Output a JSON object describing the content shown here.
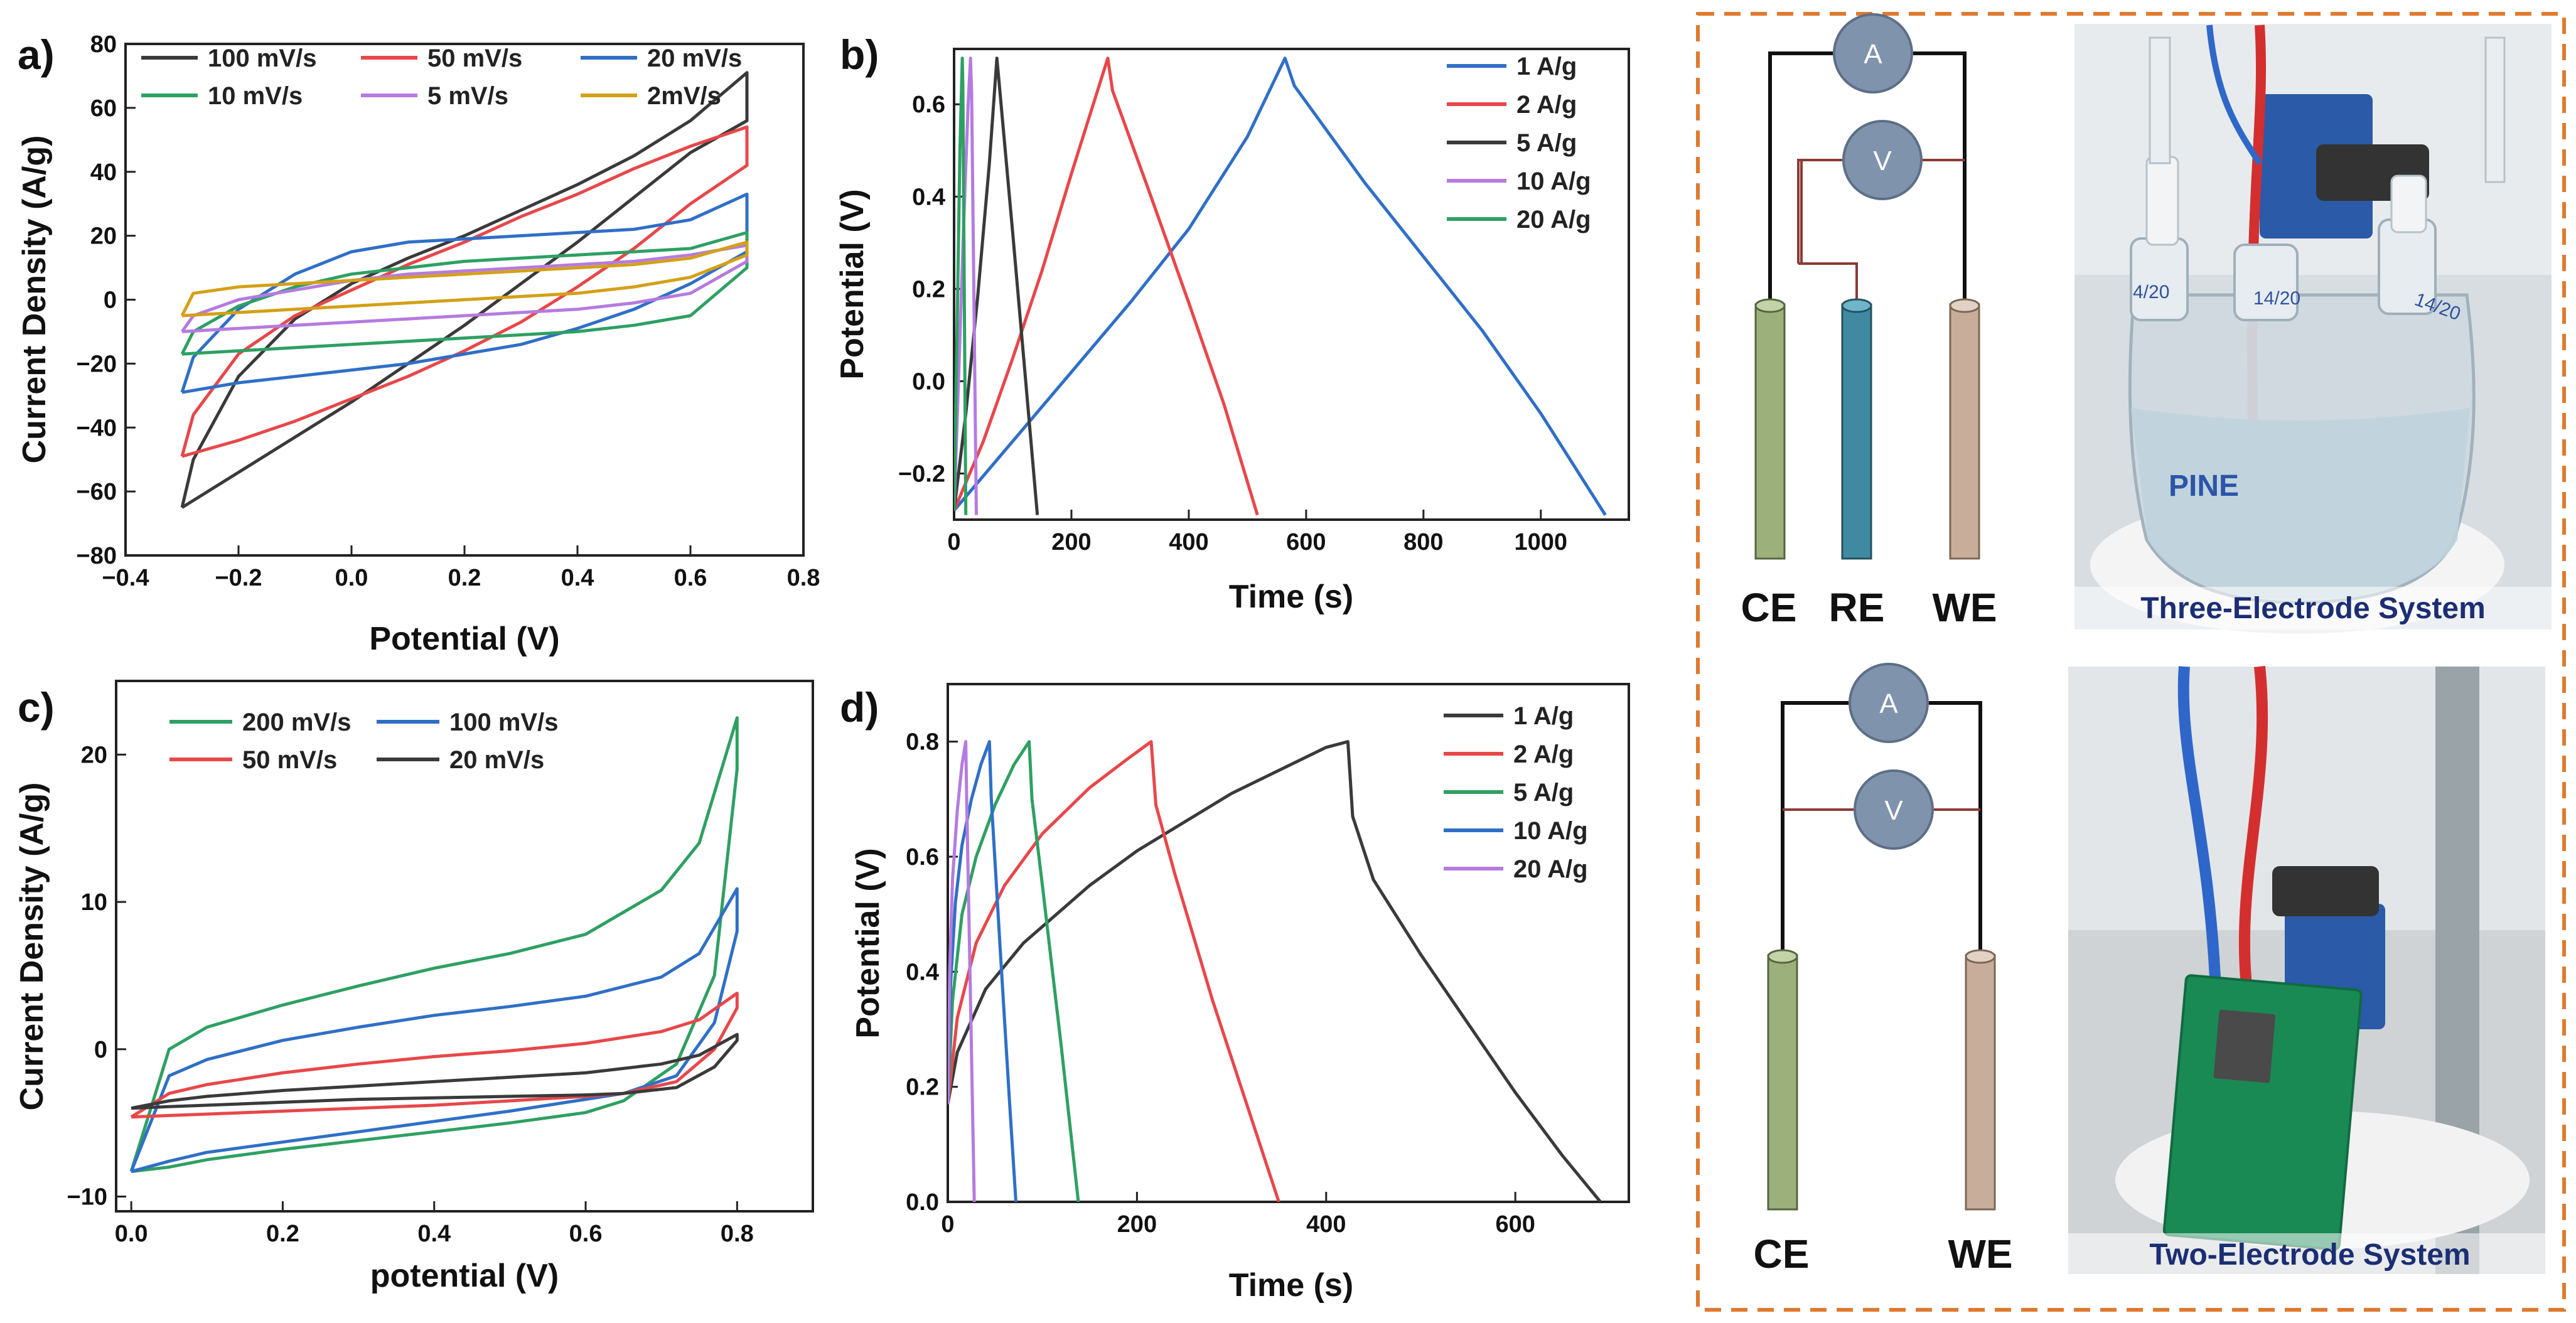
{
  "chart_data": [
    {
      "id": "a",
      "type": "line",
      "panel_label": "a)",
      "xlabel": "Potential (V)",
      "ylabel": "Current Density (A/g)",
      "xlim": [
        -0.4,
        0.8
      ],
      "ylim": [
        -80,
        80
      ],
      "xticks": [
        -0.4,
        -0.2,
        0.0,
        0.2,
        0.4,
        0.6,
        0.8
      ],
      "yticks": [
        -80,
        -60,
        -40,
        -20,
        0,
        20,
        40,
        60,
        80
      ],
      "xtick_labels": [
        "−0.4",
        "−0.2",
        "0.0",
        "0.2",
        "0.4",
        "0.6",
        "0.8"
      ],
      "ytick_labels": [
        "−80",
        "−60",
        "−40",
        "−20",
        "0",
        "20",
        "40",
        "60",
        "80"
      ],
      "legend": {
        "position": "top",
        "columns": 3
      },
      "series": [
        {
          "name": "100 mV/s",
          "color": "#3a3a3a",
          "x": [
            -0.3,
            -0.2,
            -0.1,
            0.0,
            0.1,
            0.2,
            0.3,
            0.4,
            0.5,
            0.6,
            0.7,
            0.7,
            0.6,
            0.5,
            0.4,
            0.3,
            0.2,
            0.1,
            0.0,
            -0.1,
            -0.2,
            -0.28,
            -0.3
          ],
          "y": [
            -65,
            -54,
            -43,
            -32,
            -20,
            -8,
            5,
            18,
            32,
            46,
            56,
            71,
            56,
            45,
            36,
            28,
            20,
            13,
            5,
            -6,
            -24,
            -50,
            -65
          ]
        },
        {
          "name": "50 mV/s",
          "color": "#e8474a",
          "x": [
            -0.3,
            -0.2,
            -0.1,
            0.0,
            0.1,
            0.2,
            0.3,
            0.4,
            0.5,
            0.6,
            0.7,
            0.7,
            0.6,
            0.5,
            0.4,
            0.3,
            0.2,
            0.1,
            0.0,
            -0.1,
            -0.2,
            -0.28,
            -0.3
          ],
          "y": [
            -49,
            -44,
            -38,
            -31,
            -24,
            -16,
            -7,
            4,
            16,
            30,
            42,
            54,
            48,
            41,
            33,
            26,
            18,
            11,
            3,
            -5,
            -17,
            -36,
            -49
          ]
        },
        {
          "name": "20 mV/s",
          "color": "#2f6fc7",
          "x": [
            -0.3,
            -0.2,
            -0.1,
            0.0,
            0.1,
            0.2,
            0.3,
            0.4,
            0.5,
            0.6,
            0.7,
            0.7,
            0.6,
            0.5,
            0.4,
            0.3,
            0.2,
            0.1,
            0.0,
            -0.1,
            -0.2,
            -0.28,
            -0.3
          ],
          "y": [
            -29,
            -26,
            -24,
            -22,
            -20,
            -17,
            -14,
            -9,
            -3,
            5,
            15,
            33,
            25,
            22,
            21,
            20,
            19,
            18,
            15,
            8,
            -3,
            -18,
            -29
          ]
        },
        {
          "name": "10 mV/s",
          "color": "#2ea062",
          "x": [
            -0.3,
            -0.2,
            -0.1,
            0.0,
            0.1,
            0.2,
            0.3,
            0.4,
            0.5,
            0.6,
            0.7,
            0.7,
            0.6,
            0.5,
            0.4,
            0.3,
            0.2,
            0.1,
            0.0,
            -0.1,
            -0.2,
            -0.28,
            -0.3
          ],
          "y": [
            -17,
            -16,
            -15,
            -14,
            -13,
            -12,
            -11,
            -10,
            -8,
            -5,
            10,
            21,
            16,
            15,
            14,
            13,
            12,
            10,
            8,
            4,
            -2,
            -10,
            -17
          ]
        },
        {
          "name": "5 mV/s",
          "color": "#b57be0",
          "x": [
            -0.3,
            -0.2,
            -0.1,
            0.0,
            0.1,
            0.2,
            0.3,
            0.4,
            0.5,
            0.6,
            0.7,
            0.7,
            0.6,
            0.5,
            0.4,
            0.3,
            0.2,
            0.1,
            0.0,
            -0.1,
            -0.2,
            -0.28,
            -0.3
          ],
          "y": [
            -10,
            -9,
            -8,
            -7,
            -6,
            -5,
            -4,
            -3,
            -1,
            2,
            12,
            17,
            14,
            12,
            11,
            10,
            9,
            8,
            6,
            3,
            0,
            -5,
            -10
          ]
        },
        {
          "name": "2mV/s",
          "color": "#d4a017",
          "x": [
            -0.3,
            -0.2,
            -0.1,
            0.0,
            0.1,
            0.2,
            0.3,
            0.4,
            0.5,
            0.6,
            0.7,
            0.7,
            0.6,
            0.5,
            0.4,
            0.3,
            0.2,
            0.1,
            0.0,
            -0.1,
            -0.2,
            -0.28,
            -0.3
          ],
          "y": [
            -5,
            -4,
            -3,
            -2,
            -1,
            0,
            1,
            2,
            4,
            7,
            14,
            18,
            13,
            11,
            10,
            9,
            8,
            7,
            6,
            5,
            4,
            2,
            -5
          ]
        }
      ]
    },
    {
      "id": "b",
      "type": "line",
      "panel_label": "b)",
      "xlabel": "Time (s)",
      "ylabel": "Potential (V)",
      "xlim": [
        0,
        1150
      ],
      "ylim": [
        -0.3,
        0.72
      ],
      "xticks": [
        0,
        200,
        400,
        600,
        800,
        1000
      ],
      "yticks": [
        -0.2,
        0.0,
        0.2,
        0.4,
        0.6
      ],
      "xtick_labels": [
        "0",
        "200",
        "400",
        "600",
        "800",
        "1000"
      ],
      "ytick_labels": [
        "−0.2",
        "0.0",
        "0.2",
        "0.4",
        "0.6"
      ],
      "legend": {
        "position": "top-right",
        "columns": 1
      },
      "series": [
        {
          "name": "1 A/g",
          "color": "#2f6fc7",
          "x": [
            0,
            100,
            200,
            300,
            400,
            500,
            564,
            580,
            700,
            800,
            900,
            1000,
            1110
          ],
          "y": [
            -0.28,
            -0.13,
            0.02,
            0.17,
            0.33,
            0.53,
            0.7,
            0.64,
            0.43,
            0.27,
            0.11,
            -0.07,
            -0.29
          ]
        },
        {
          "name": "2 A/g",
          "color": "#e8474a",
          "x": [
            0,
            50,
            100,
            150,
            200,
            262,
            270,
            330,
            400,
            460,
            517
          ],
          "y": [
            -0.28,
            -0.13,
            0.05,
            0.24,
            0.45,
            0.7,
            0.63,
            0.42,
            0.17,
            -0.05,
            -0.29
          ]
        },
        {
          "name": "5 A/g",
          "color": "#3a3a3a",
          "x": [
            0,
            20,
            40,
            60,
            73,
            78,
            100,
            120,
            142
          ],
          "y": [
            -0.28,
            -0.07,
            0.18,
            0.47,
            0.7,
            0.63,
            0.32,
            0.03,
            -0.29
          ]
        },
        {
          "name": "10 A/g",
          "color": "#b57be0",
          "x": [
            0,
            8,
            16,
            24,
            28,
            30,
            38
          ],
          "y": [
            -0.28,
            0.02,
            0.33,
            0.6,
            0.7,
            0.62,
            -0.29
          ]
        },
        {
          "name": "20 A/g",
          "color": "#2ea062",
          "x": [
            0,
            5,
            10,
            14,
            15,
            20
          ],
          "y": [
            -0.28,
            0.1,
            0.5,
            0.7,
            0.64,
            -0.29
          ]
        }
      ]
    },
    {
      "id": "c",
      "type": "line",
      "panel_label": "c)",
      "xlabel": "potential (V)",
      "ylabel": "Current Density (A/g)",
      "xlim": [
        -0.02,
        0.9
      ],
      "ylim": [
        -11,
        25
      ],
      "xticks": [
        0.0,
        0.2,
        0.4,
        0.6,
        0.8
      ],
      "yticks": [
        -10,
        0,
        10,
        20
      ],
      "xtick_labels": [
        "0.0",
        "0.2",
        "0.4",
        "0.6",
        "0.8"
      ],
      "ytick_labels": [
        "−10",
        "0",
        "10",
        "20"
      ],
      "legend": {
        "position": "top-left",
        "columns": 2
      },
      "series": [
        {
          "name": "200 mV/s",
          "color": "#2ea062",
          "x": [
            0.0,
            0.05,
            0.1,
            0.2,
            0.3,
            0.4,
            0.5,
            0.6,
            0.7,
            0.75,
            0.8,
            0.8,
            0.77,
            0.72,
            0.65,
            0.6,
            0.5,
            0.4,
            0.3,
            0.2,
            0.1,
            0.05,
            0.0
          ],
          "y": [
            -8.3,
            0.0,
            1.5,
            3.0,
            4.3,
            5.5,
            6.5,
            7.8,
            10.8,
            14.0,
            22.5,
            19.0,
            5.0,
            -1.0,
            -3.5,
            -4.3,
            -5.0,
            -5.6,
            -6.2,
            -6.8,
            -7.5,
            -8.0,
            -8.3
          ]
        },
        {
          "name": "100 mV/s",
          "color": "#2f6fc7",
          "x": [
            0.0,
            0.05,
            0.1,
            0.2,
            0.3,
            0.4,
            0.5,
            0.6,
            0.7,
            0.75,
            0.8,
            0.8,
            0.77,
            0.72,
            0.65,
            0.6,
            0.5,
            0.4,
            0.3,
            0.2,
            0.1,
            0.05,
            0.0
          ],
          "y": [
            -8.3,
            -1.8,
            -0.7,
            0.6,
            1.5,
            2.3,
            2.9,
            3.6,
            4.9,
            6.5,
            10.9,
            8.0,
            1.8,
            -1.8,
            -3.0,
            -3.4,
            -4.2,
            -4.9,
            -5.6,
            -6.3,
            -7.0,
            -7.6,
            -8.3
          ]
        },
        {
          "name": "50 mV/s",
          "color": "#e8474a",
          "x": [
            0.0,
            0.05,
            0.1,
            0.2,
            0.3,
            0.4,
            0.5,
            0.6,
            0.7,
            0.75,
            0.8,
            0.8,
            0.77,
            0.72,
            0.65,
            0.6,
            0.5,
            0.4,
            0.3,
            0.2,
            0.1,
            0.05,
            0.0
          ],
          "y": [
            -4.6,
            -3.0,
            -2.4,
            -1.6,
            -1.0,
            -0.5,
            -0.1,
            0.4,
            1.2,
            2.0,
            3.8,
            2.8,
            0.0,
            -2.2,
            -3.0,
            -3.2,
            -3.5,
            -3.8,
            -4.0,
            -4.2,
            -4.4,
            -4.5,
            -4.6
          ]
        },
        {
          "name": "20 mV/s",
          "color": "#3a3a3a",
          "x": [
            0.0,
            0.05,
            0.1,
            0.2,
            0.3,
            0.4,
            0.5,
            0.6,
            0.7,
            0.75,
            0.8,
            0.8,
            0.77,
            0.72,
            0.65,
            0.6,
            0.5,
            0.4,
            0.3,
            0.2,
            0.1,
            0.05,
            0.0
          ],
          "y": [
            -4.0,
            -3.5,
            -3.2,
            -2.8,
            -2.5,
            -2.2,
            -1.9,
            -1.6,
            -1.0,
            -0.4,
            1.0,
            0.6,
            -1.2,
            -2.6,
            -3.0,
            -3.1,
            -3.2,
            -3.3,
            -3.4,
            -3.6,
            -3.8,
            -3.9,
            -4.0
          ]
        }
      ]
    },
    {
      "id": "d",
      "type": "line",
      "panel_label": "d)",
      "xlabel": "Time (s)",
      "ylabel": "Potential (V)",
      "xlim": [
        0,
        720
      ],
      "ylim": [
        0,
        0.9
      ],
      "xticks": [
        0,
        200,
        400,
        600
      ],
      "yticks": [
        0.0,
        0.2,
        0.4,
        0.6,
        0.8
      ],
      "xtick_labels": [
        "0",
        "200",
        "400",
        "600"
      ],
      "ytick_labels": [
        "0.0",
        "0.2",
        "0.4",
        "0.6",
        "0.8"
      ],
      "legend": {
        "position": "top-right",
        "columns": 1
      },
      "series": [
        {
          "name": "1 A/g",
          "color": "#3a3a3a",
          "x": [
            0,
            10,
            40,
            80,
            150,
            200,
            250,
            300,
            350,
            400,
            423,
            428,
            450,
            500,
            550,
            600,
            650,
            690
          ],
          "y": [
            0.17,
            0.26,
            0.37,
            0.45,
            0.55,
            0.61,
            0.66,
            0.71,
            0.75,
            0.79,
            0.8,
            0.67,
            0.56,
            0.43,
            0.31,
            0.19,
            0.08,
            0.0
          ]
        },
        {
          "name": "2 A/g",
          "color": "#e8474a",
          "x": [
            0,
            10,
            30,
            60,
            100,
            150,
            190,
            215,
            220,
            240,
            280,
            320,
            350
          ],
          "y": [
            0.17,
            0.32,
            0.45,
            0.55,
            0.64,
            0.72,
            0.77,
            0.8,
            0.69,
            0.57,
            0.35,
            0.15,
            0.0
          ]
        },
        {
          "name": "5 A/g",
          "color": "#2ea062",
          "x": [
            0,
            5,
            15,
            30,
            50,
            70,
            86,
            89,
            100,
            120,
            138
          ],
          "y": [
            0.17,
            0.35,
            0.5,
            0.6,
            0.69,
            0.76,
            0.8,
            0.7,
            0.55,
            0.27,
            0.0
          ]
        },
        {
          "name": "10 A/g",
          "color": "#2f6fc7",
          "x": [
            0,
            3,
            8,
            15,
            25,
            35,
            44,
            46,
            55,
            65,
            72
          ],
          "y": [
            0.17,
            0.38,
            0.52,
            0.62,
            0.7,
            0.76,
            0.8,
            0.7,
            0.45,
            0.18,
            0.0
          ]
        },
        {
          "name": "20 A/g",
          "color": "#b57be0",
          "x": [
            0,
            2,
            5,
            10,
            15,
            19,
            20,
            24,
            28
          ],
          "y": [
            0.17,
            0.4,
            0.56,
            0.68,
            0.76,
            0.8,
            0.7,
            0.35,
            0.0
          ]
        }
      ]
    }
  ],
  "schematic": {
    "three_electrode": {
      "ammeter": "A",
      "voltmeter": "V",
      "labels": [
        "CE",
        "RE",
        "WE"
      ],
      "caption": "Three-Electrode System"
    },
    "two_electrode": {
      "ammeter": "A",
      "voltmeter": "V",
      "labels": [
        "CE",
        "WE"
      ],
      "caption": "Two-Electrode System"
    },
    "photo_labels": {
      "joint_1": "4/20",
      "joint_2": "14/20",
      "joint_3": "14/20",
      "brand": "PINE"
    }
  },
  "colors": {
    "border": "#e07a2e",
    "ce_rod": "#9cb07c",
    "re_rod": "#3f8aa1",
    "we_rod": "#c8ae9a",
    "meter": "#7f93ad",
    "caption": "#1b2e73",
    "board": "#1a8a55"
  }
}
